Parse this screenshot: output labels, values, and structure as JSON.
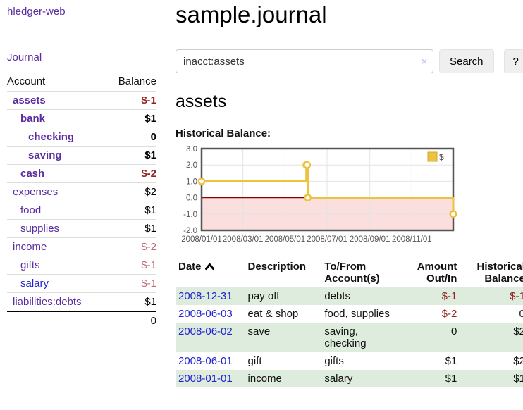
{
  "app": {
    "brand": "hledger-web"
  },
  "nav": {
    "journal": "Journal"
  },
  "sidebar": {
    "columns": {
      "account": "Account",
      "balance": "Balance"
    },
    "rows": [
      {
        "name": "assets",
        "balance": "$-1",
        "depth": 1,
        "inacct": true,
        "link": "purple",
        "tone": "neg"
      },
      {
        "name": "bank",
        "balance": "$1",
        "depth": 2,
        "inacct": true,
        "link": "purple",
        "tone": ""
      },
      {
        "name": "checking",
        "balance": "0",
        "depth": 3,
        "inacct": true,
        "link": "purple",
        "tone": ""
      },
      {
        "name": "saving",
        "balance": "$1",
        "depth": 3,
        "inacct": true,
        "link": "purple",
        "tone": ""
      },
      {
        "name": "cash",
        "balance": "$-2",
        "depth": 2,
        "inacct": true,
        "link": "purple",
        "tone": "neg"
      },
      {
        "name": "expenses",
        "balance": "$2",
        "depth": 1,
        "inacct": false,
        "link": "purple",
        "tone": ""
      },
      {
        "name": "food",
        "balance": "$1",
        "depth": 2,
        "inacct": false,
        "link": "purple",
        "tone": ""
      },
      {
        "name": "supplies",
        "balance": "$1",
        "depth": 2,
        "inacct": false,
        "link": "purple",
        "tone": ""
      },
      {
        "name": "income",
        "balance": "$-2",
        "depth": 1,
        "inacct": false,
        "link": "purple",
        "tone": "negmuted"
      },
      {
        "name": "gifts",
        "balance": "$-1",
        "depth": 2,
        "inacct": false,
        "link": "purple",
        "tone": "negmuted"
      },
      {
        "name": "salary",
        "balance": "$-1",
        "depth": 2,
        "inacct": false,
        "link": "blue",
        "tone": "negmuted"
      },
      {
        "name": "liabilities:debts",
        "balance": "$1",
        "depth": 1,
        "inacct": false,
        "link": "purple",
        "tone": ""
      }
    ],
    "total": "0"
  },
  "main": {
    "title": "sample.journal"
  },
  "search": {
    "value": "inacct:assets",
    "clear": "×",
    "button_label": "Search",
    "help_label": "?"
  },
  "account": {
    "heading": "assets",
    "chart_title": "Historical Balance:"
  },
  "chart_data": {
    "type": "line",
    "title": "Historical Balance:",
    "style": "step-after",
    "series": [
      {
        "name": "$",
        "points": [
          {
            "date": "2008-01-01",
            "day": 0,
            "value": 1
          },
          {
            "date": "2008-06-01",
            "day": 152,
            "value": 2
          },
          {
            "date": "2008-06-02",
            "day": 153,
            "value": 2
          },
          {
            "date": "2008-06-03",
            "day": 154,
            "value": 0
          },
          {
            "date": "2008-12-31",
            "day": 365,
            "value": -1
          }
        ]
      }
    ],
    "x_range_days": [
      0,
      365
    ],
    "x_ticks": [
      {
        "day": 0,
        "label": "2008/01/01"
      },
      {
        "day": 60,
        "label": "2008/03/01"
      },
      {
        "day": 121,
        "label": "2008/05/01"
      },
      {
        "day": 182,
        "label": "2008/07/01"
      },
      {
        "day": 244,
        "label": "2008/09/01"
      },
      {
        "day": 305,
        "label": "2008/11/01"
      }
    ],
    "y_ticks": [
      3.0,
      2.0,
      1.0,
      0.0,
      -1.0,
      -2.0
    ],
    "ylim": [
      -2,
      3
    ],
    "legend": {
      "label": "$",
      "position": "top-right"
    },
    "negative_region_shaded": true,
    "grid": true
  },
  "register": {
    "columns": [
      {
        "label": "Date",
        "sorted": "asc"
      },
      {
        "label": "Description"
      },
      {
        "label": "To/From Account(s)"
      },
      {
        "label": "Amount Out/In"
      },
      {
        "label": "Historical Balance"
      }
    ],
    "rows": [
      {
        "date": "2008-12-31",
        "description": "pay off",
        "accounts": "debts",
        "amount": "$-1",
        "balance": "$-1",
        "amount_neg": true,
        "balance_neg": true
      },
      {
        "date": "2008-06-03",
        "description": "eat & shop",
        "accounts": "food, supplies",
        "amount": "$-2",
        "balance": "0",
        "amount_neg": true,
        "balance_neg": false
      },
      {
        "date": "2008-06-02",
        "description": "save",
        "accounts": "saving, checking",
        "amount": "0",
        "balance": "$2",
        "amount_neg": false,
        "balance_neg": false
      },
      {
        "date": "2008-06-01",
        "description": "gift",
        "accounts": "gifts",
        "amount": "$1",
        "balance": "$2",
        "amount_neg": false,
        "balance_neg": false
      },
      {
        "date": "2008-01-01",
        "description": "income",
        "accounts": "salary",
        "amount": "$1",
        "balance": "$1",
        "amount_neg": false,
        "balance_neg": false
      }
    ]
  },
  "colors": {
    "purple": "#5a2ca0",
    "blue": "#2323d2",
    "neg": "#941f1f",
    "negmuted": "#c06b76",
    "rowgreen": "#ddecdd",
    "gold": "#edc240",
    "goldborder": "#cda82e",
    "pink": "#fbdede",
    "zeroline": "#8b0000",
    "grid": "#e4e4e4",
    "axis": "#545454",
    "border": "#555555",
    "divider": "#dddddd",
    "btnbg": "#efefef",
    "btnborder": "#e3e3e3",
    "inputborder": "#cccccc",
    "clear": "#cdc3e6",
    "text": "#111111"
  }
}
